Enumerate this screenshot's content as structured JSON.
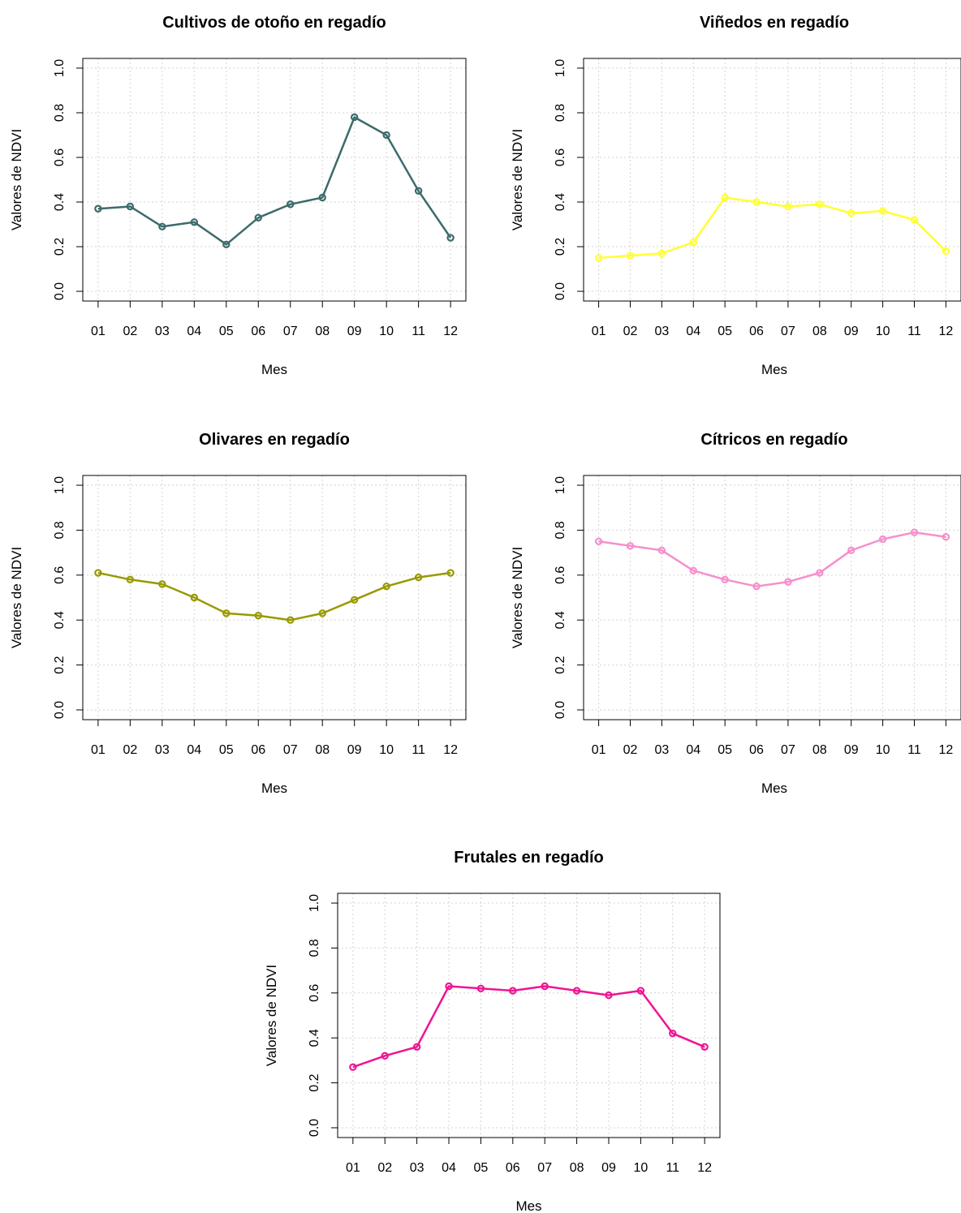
{
  "chart_data": [
    {
      "type": "line",
      "title": "Cultivos de otoño en regadío",
      "xlabel": "Mes",
      "ylabel": "Valores de NDVI",
      "categories": [
        "01",
        "02",
        "03",
        "04",
        "05",
        "06",
        "07",
        "08",
        "09",
        "10",
        "11",
        "12"
      ],
      "series": [
        {
          "values": [
            0.37,
            0.38,
            0.29,
            0.31,
            0.21,
            0.33,
            0.39,
            0.42,
            0.78,
            0.7,
            0.45,
            0.24
          ],
          "color": "#3d6b6b"
        }
      ],
      "ylim": [
        0,
        1
      ],
      "yticks": [
        "0.0",
        "0.2",
        "0.4",
        "0.6",
        "0.8",
        "1.0"
      ],
      "grid": true
    },
    {
      "type": "line",
      "title": "Viñedos en regadío",
      "xlabel": "Mes",
      "ylabel": "Valores de NDVI",
      "categories": [
        "01",
        "02",
        "03",
        "04",
        "05",
        "06",
        "07",
        "08",
        "09",
        "10",
        "11",
        "12"
      ],
      "series": [
        {
          "values": [
            0.15,
            0.16,
            0.17,
            0.22,
            0.42,
            0.4,
            0.38,
            0.39,
            0.35,
            0.36,
            0.32,
            0.18
          ],
          "color": "#ffff33"
        }
      ],
      "ylim": [
        0,
        1
      ],
      "yticks": [
        "0.0",
        "0.2",
        "0.4",
        "0.6",
        "0.8",
        "1.0"
      ],
      "grid": true
    },
    {
      "type": "line",
      "title": "Olivares en regadío",
      "xlabel": "Mes",
      "ylabel": "Valores de NDVI",
      "categories": [
        "01",
        "02",
        "03",
        "04",
        "05",
        "06",
        "07",
        "08",
        "09",
        "10",
        "11",
        "12"
      ],
      "series": [
        {
          "values": [
            0.61,
            0.58,
            0.56,
            0.5,
            0.43,
            0.42,
            0.4,
            0.43,
            0.49,
            0.55,
            0.59,
            0.61
          ],
          "color": "#999900"
        }
      ],
      "ylim": [
        0,
        1
      ],
      "yticks": [
        "0.0",
        "0.2",
        "0.4",
        "0.6",
        "0.8",
        "1.0"
      ],
      "grid": true
    },
    {
      "type": "line",
      "title": "Cítricos en regadío",
      "xlabel": "Mes",
      "ylabel": "Valores de NDVI",
      "categories": [
        "01",
        "02",
        "03",
        "04",
        "05",
        "06",
        "07",
        "08",
        "09",
        "10",
        "11",
        "12"
      ],
      "series": [
        {
          "values": [
            0.75,
            0.73,
            0.71,
            0.62,
            0.58,
            0.55,
            0.57,
            0.61,
            0.71,
            0.76,
            0.79,
            0.77
          ],
          "color": "#f78fcb"
        }
      ],
      "ylim": [
        0,
        1
      ],
      "yticks": [
        "0.0",
        "0.2",
        "0.4",
        "0.6",
        "0.8",
        "1.0"
      ],
      "grid": true
    },
    {
      "type": "line",
      "title": "Frutales en regadío",
      "xlabel": "Mes",
      "ylabel": "Valores de NDVI",
      "categories": [
        "01",
        "02",
        "03",
        "04",
        "05",
        "06",
        "07",
        "08",
        "09",
        "10",
        "11",
        "12"
      ],
      "series": [
        {
          "values": [
            0.27,
            0.32,
            0.36,
            0.63,
            0.62,
            0.61,
            0.63,
            0.61,
            0.59,
            0.61,
            0.42,
            0.36
          ],
          "color": "#f01493"
        }
      ],
      "ylim": [
        0,
        1
      ],
      "yticks": [
        "0.0",
        "0.2",
        "0.4",
        "0.6",
        "0.8",
        "1.0"
      ],
      "grid": true
    }
  ]
}
